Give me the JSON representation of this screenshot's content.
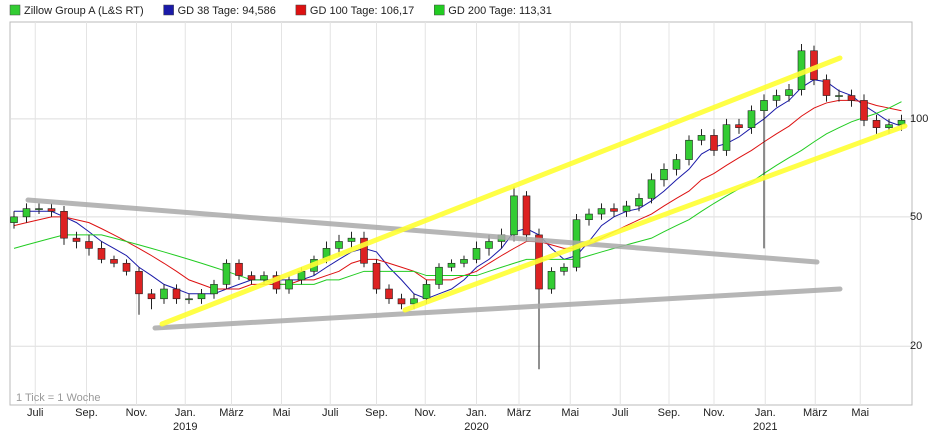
{
  "chart_data": {
    "type": "candlestick",
    "candles": {
      "name": "Zillow Group A (L&S RT)",
      "up_color": "#33cc33",
      "down_color": "#dd2222",
      "open": [
        48,
        50,
        53,
        53,
        52,
        43,
        42,
        40,
        37,
        36,
        34,
        29,
        28,
        30,
        28,
        28,
        29,
        31,
        36,
        33,
        32,
        33,
        30,
        32,
        34,
        37,
        40,
        42,
        43,
        36,
        30,
        28,
        27,
        28,
        31,
        35,
        36,
        37,
        40,
        42,
        44,
        58,
        44,
        30,
        34,
        35,
        49,
        51,
        53,
        52,
        54,
        57,
        65,
        70,
        75,
        86,
        89,
        80,
        96,
        94,
        106,
        114,
        118,
        123,
        162,
        132,
        118,
        118,
        114,
        99,
        94,
        96
      ],
      "high": [
        52,
        55,
        55,
        55,
        54,
        45,
        44,
        42,
        38,
        37,
        35,
        30,
        31,
        31,
        29,
        30,
        32,
        37,
        37,
        34,
        34,
        34,
        33,
        35,
        38,
        42,
        44,
        45,
        45,
        37,
        31,
        29,
        29,
        32,
        36,
        37,
        38,
        42,
        44,
        46,
        62,
        60,
        46,
        35,
        36,
        51,
        53,
        55,
        55,
        56,
        59,
        68,
        73,
        78,
        89,
        93,
        93,
        100,
        100,
        110,
        119,
        123,
        128,
        170,
        168,
        137,
        123,
        123,
        119,
        103,
        100,
        103
      ],
      "low": [
        46,
        48,
        51,
        50,
        41,
        40,
        38,
        36,
        35,
        33,
        25,
        26,
        27,
        27,
        27,
        27,
        28,
        30,
        32,
        31,
        31,
        29,
        29,
        31,
        33,
        36,
        38,
        40,
        35,
        29,
        27,
        26,
        26,
        27,
        30,
        34,
        35,
        36,
        38,
        40,
        42,
        42,
        17,
        29,
        33,
        34,
        47,
        49,
        50,
        50,
        52,
        55,
        62,
        67,
        72,
        83,
        77,
        77,
        90,
        90,
        40,
        109,
        113,
        118,
        127,
        113,
        113,
        109,
        95,
        90,
        90,
        92
      ],
      "close": [
        50,
        53,
        53,
        52,
        43,
        42,
        40,
        37,
        36,
        34,
        29,
        28,
        30,
        28,
        28,
        29,
        31,
        36,
        33,
        32,
        33,
        30,
        32,
        34,
        37,
        40,
        42,
        43,
        36,
        30,
        28,
        27,
        28,
        31,
        35,
        36,
        37,
        40,
        42,
        44,
        58,
        44,
        30,
        34,
        35,
        49,
        51,
        53,
        52,
        54,
        57,
        65,
        70,
        75,
        86,
        89,
        80,
        96,
        94,
        106,
        114,
        118,
        123,
        162,
        132,
        118,
        118,
        114,
        99,
        94,
        96,
        99
      ]
    },
    "series": [
      {
        "name": "GD 38 Tage: 94,586",
        "color": "#1a1aa8",
        "values": [
          52,
          52,
          52,
          52,
          50,
          48,
          45,
          42,
          40,
          38,
          35,
          33,
          31,
          30,
          29,
          29,
          29,
          30,
          31,
          32,
          32,
          32,
          32,
          32,
          33,
          35,
          37,
          39,
          40,
          39,
          35,
          32,
          29,
          28,
          29,
          30,
          32,
          35,
          37,
          40,
          45,
          46,
          44,
          40,
          37,
          38,
          42,
          47,
          50,
          52,
          53,
          56,
          60,
          65,
          70,
          78,
          82,
          84,
          88,
          94,
          100,
          108,
          114,
          125,
          132,
          130,
          122,
          118,
          110,
          104,
          98,
          95
        ]
      },
      {
        "name": "GD 100 Tage: 106,17",
        "color": "#dd1111",
        "values": [
          47,
          48,
          49,
          50,
          50,
          49,
          48,
          46,
          44,
          42,
          40,
          38,
          36,
          34,
          32,
          31,
          30,
          30,
          30,
          31,
          31,
          31,
          31,
          32,
          32,
          33,
          34,
          36,
          37,
          37,
          36,
          35,
          34,
          32,
          32,
          32,
          33,
          34,
          36,
          38,
          40,
          42,
          42,
          41,
          40,
          40,
          41,
          43,
          45,
          47,
          49,
          51,
          54,
          57,
          60,
          65,
          68,
          72,
          76,
          80,
          85,
          90,
          95,
          102,
          108,
          112,
          114,
          114,
          113,
          110,
          108,
          106
        ]
      },
      {
        "name": "GD 200 Tage: 113,31",
        "color": "#22cc22",
        "values": [
          40,
          41,
          42,
          43,
          44,
          44,
          44,
          44,
          43,
          42,
          41,
          40,
          39,
          38,
          37,
          36,
          35,
          34,
          33,
          32,
          32,
          31,
          31,
          31,
          31,
          32,
          32,
          33,
          34,
          34,
          34,
          34,
          34,
          33,
          33,
          33,
          33,
          33,
          34,
          35,
          36,
          37,
          37,
          37,
          37,
          37,
          38,
          39,
          40,
          41,
          42,
          43,
          45,
          47,
          49,
          52,
          55,
          58,
          61,
          64,
          68,
          72,
          76,
          80,
          85,
          90,
          94,
          98,
          101,
          104,
          108,
          113
        ]
      }
    ],
    "log_scale": true,
    "grid": true,
    "ylim": [
      13.2,
      198.6
    ],
    "yticks": [
      20,
      50,
      100
    ],
    "xlim": [
      -0.32,
      71.84
    ],
    "xticks": [
      {
        "value": 1.7,
        "label": "Juli"
      },
      {
        "value": 5.8,
        "label": "Sep."
      },
      {
        "value": 9.8,
        "label": "Nov."
      },
      {
        "value": 13.7,
        "label": "Jan."
      },
      {
        "value": 17.4,
        "label": "März"
      },
      {
        "value": 21.4,
        "label": "Mai"
      },
      {
        "value": 25.3,
        "label": "Juli"
      },
      {
        "value": 29,
        "label": "Sep."
      },
      {
        "value": 32.9,
        "label": "Nov."
      },
      {
        "value": 37,
        "label": "Jan."
      },
      {
        "value": 40.4,
        "label": "März"
      },
      {
        "value": 44.5,
        "label": "Mai"
      },
      {
        "value": 48.5,
        "label": "Juli"
      },
      {
        "value": 52.4,
        "label": "Sep."
      },
      {
        "value": 56,
        "label": "Nov."
      },
      {
        "value": 60.1,
        "label": "Jan."
      },
      {
        "value": 64.1,
        "label": "März"
      },
      {
        "value": 67.7,
        "label": "Mai"
      }
    ],
    "xtick_years": [
      {
        "value": 13.7,
        "label": "2019"
      },
      {
        "value": 37,
        "label": "2020"
      },
      {
        "value": 60.1,
        "label": "2021"
      }
    ],
    "note": "1 Tick = 1 Woche"
  }
}
